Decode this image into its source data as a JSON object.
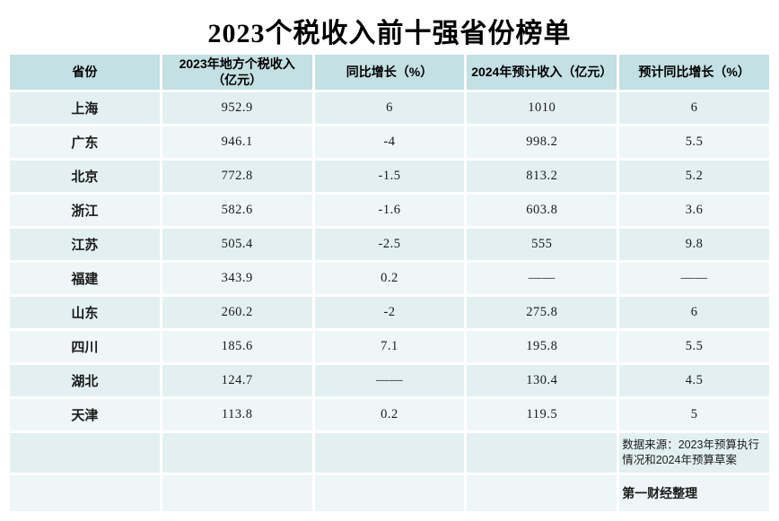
{
  "title": "2023个税收入前十强省份榜单",
  "colors": {
    "header_bg": "#c3e0e3",
    "row_odd": "#e3f0f2",
    "row_even": "#eef6f7",
    "text": "#1a1a1a"
  },
  "table": {
    "headers": [
      "省份",
      "2023年地方个税收入\n（亿元）",
      "同比增长（%）",
      "2024年预计收入（亿元）",
      "预计同比增长（%）"
    ],
    "rows": [
      [
        "上海",
        "952.9",
        "6",
        "1010",
        "6"
      ],
      [
        "广东",
        "946.1",
        "-4",
        "998.2",
        "5.5"
      ],
      [
        "北京",
        "772.8",
        "-1.5",
        "813.2",
        "5.2"
      ],
      [
        "浙江",
        "582.6",
        "-1.6",
        "603.8",
        "3.6"
      ],
      [
        "江苏",
        "505.4",
        "-2.5",
        "555",
        "9.8"
      ],
      [
        "福建",
        "343.9",
        "0.2",
        "——",
        "——"
      ],
      [
        "山东",
        "260.2",
        "-2",
        "275.8",
        "6"
      ],
      [
        "四川",
        "185.6",
        "7.1",
        "195.8",
        "5.5"
      ],
      [
        "湖北",
        "124.7",
        "——",
        "130.4",
        "4.5"
      ],
      [
        "天津",
        "113.8",
        "0.2",
        "119.5",
        "5"
      ]
    ]
  },
  "footer": {
    "source": "数据来源：2023年预算执行情况和2024年预算草案",
    "credit": "第一财经整理"
  },
  "chart_data": {
    "type": "table",
    "title": "2023个税收入前十强省份榜单",
    "categories": [
      "上海",
      "广东",
      "北京",
      "浙江",
      "江苏",
      "福建",
      "山东",
      "四川",
      "湖北",
      "天津"
    ],
    "series": [
      {
        "name": "2023年地方个税收入（亿元）",
        "values": [
          952.9,
          946.1,
          772.8,
          582.6,
          505.4,
          343.9,
          260.2,
          185.6,
          124.7,
          113.8
        ]
      },
      {
        "name": "同比增长（%）",
        "values": [
          6,
          -4,
          -1.5,
          -1.6,
          -2.5,
          0.2,
          -2,
          7.1,
          null,
          0.2
        ]
      },
      {
        "name": "2024年预计收入（亿元）",
        "values": [
          1010,
          998.2,
          813.2,
          603.8,
          555,
          null,
          275.8,
          195.8,
          130.4,
          119.5
        ]
      },
      {
        "name": "预计同比增长（%）",
        "values": [
          6,
          5.5,
          5.2,
          3.6,
          9.8,
          null,
          6,
          5.5,
          4.5,
          5
        ]
      }
    ],
    "annotations": [
      "数据来源：2023年预算执行情况和2024年预算草案",
      "第一财经整理"
    ]
  }
}
